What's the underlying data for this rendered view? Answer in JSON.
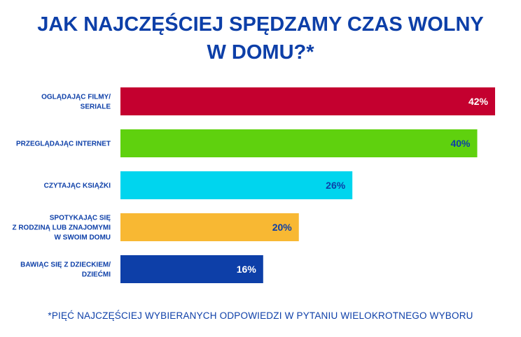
{
  "chart_data": {
    "type": "bar",
    "orientation": "horizontal",
    "title_lines": [
      "JAK NAJCZĘŚCIEJ SPĘDZAMY CZAS WOLNY",
      "W DOMU?*"
    ],
    "categories": [
      [
        "OGLĄDAJĄC FILMY/",
        "SERIALE"
      ],
      [
        "PRZEGLĄDAJĄC INTERNET"
      ],
      [
        "CZYTAJĄC KSIĄŻKI"
      ],
      [
        "SPOTYKAJĄC SIĘ",
        "Z RODZINĄ LUB ZNAJOMYMI",
        "W SWOIM DOMU"
      ],
      [
        "BAWIĄC SIĘ Z DZIECKIEM/",
        "DZIEĆMI"
      ]
    ],
    "values": [
      42,
      40,
      26,
      20,
      16
    ],
    "value_labels": [
      "42%",
      "40%",
      "26%",
      "20%",
      "16%"
    ],
    "colors": [
      "#c4002f",
      "#5fd10e",
      "#00d5ee",
      "#f8b833",
      "#0d3fa8"
    ],
    "label_colors": [
      "#ffffff",
      "#0d3fa8",
      "#0d3fa8",
      "#0d3fa8",
      "#ffffff"
    ],
    "xlim": [
      0,
      42
    ],
    "grid": false,
    "footnote": "*PIĘĆ NAJCZĘŚCIEJ WYBIERANYCH ODPOWIEDZI W PYTANIU WIELOKROTNEGO WYBORU"
  }
}
